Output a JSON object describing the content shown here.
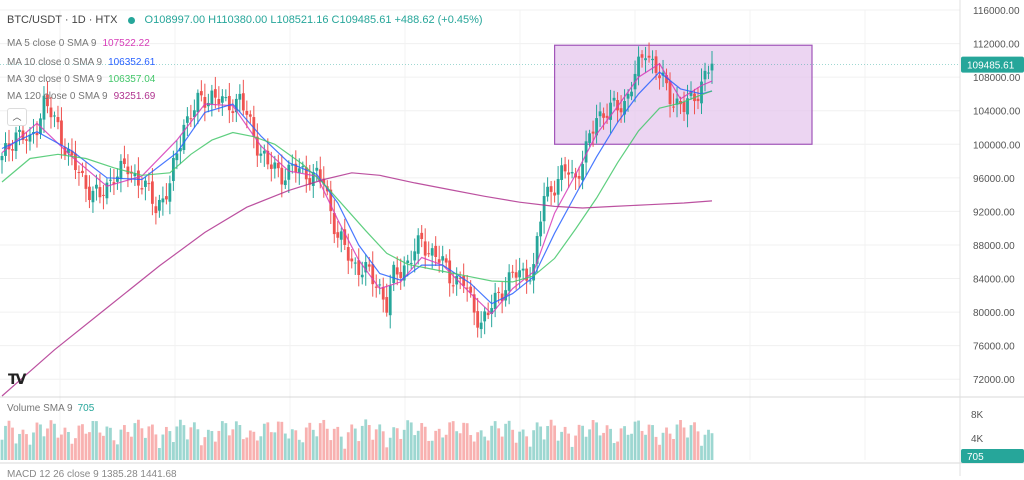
{
  "header": {
    "title": "BTC/USDT · 1D · HTX",
    "ohlc": "O108997.00 H110380.00 L108521.16 C109485.61 +488.62 (+0.45%)"
  },
  "moving_averages": [
    {
      "label": "MA 5 close 0 SMA 9",
      "value": "107522.22",
      "color": "#d63bb8"
    },
    {
      "label": "MA 10 close 0 SMA 9",
      "value": "106352.61",
      "color": "#2962ff"
    },
    {
      "label": "MA 30 close 0 SMA 9",
      "value": "106357.04",
      "color": "#43c76a"
    },
    {
      "label": "MA 120 close 0 SMA 9",
      "value": "93251.69",
      "color": "#b0338f"
    }
  ],
  "volume": {
    "label": "Volume SMA 9",
    "value": "705",
    "axis_labels": [
      "8K",
      "4K"
    ],
    "last_badge": "705"
  },
  "macd": {
    "label": "MACD 12 26 close 9",
    "values": "1385.28 1441.68"
  },
  "logo_text": "TV",
  "colors": {
    "up": "#26a69a",
    "down": "#ef5350",
    "highlight_fill": "#e6c7ee",
    "highlight_stroke": "#a155b9",
    "price_badge": "#26a69a"
  },
  "chart_data": {
    "type": "candlestick",
    "title": "BTC/USDT · 1D · HTX",
    "ylim": [
      70000,
      116000
    ],
    "y_ticks": [
      116000,
      112000,
      108000,
      104000,
      100000,
      96000,
      92000,
      88000,
      84000,
      80000,
      76000,
      72000
    ],
    "y_tick_labels": [
      "116000.00",
      "112000.00",
      "108000.00",
      "104000.00",
      "100000.00",
      "96000.00",
      "92000.00",
      "88000.00",
      "84000.00",
      "80000.00",
      "76000.00",
      "72000.00"
    ],
    "last_price": 109485.61,
    "last_price_label": "109485.61",
    "close_path": [
      [
        0,
        98000
      ],
      [
        4,
        101500
      ],
      [
        8,
        100000
      ],
      [
        12,
        105000
      ],
      [
        16,
        102000
      ],
      [
        20,
        97800
      ],
      [
        24,
        95200
      ],
      [
        28,
        93500
      ],
      [
        32,
        96500
      ],
      [
        36,
        97000
      ],
      [
        40,
        95500
      ],
      [
        44,
        92500
      ],
      [
        48,
        95000
      ],
      [
        52,
        102500
      ],
      [
        56,
        104800
      ],
      [
        60,
        106000
      ],
      [
        64,
        104500
      ],
      [
        68,
        105500
      ],
      [
        72,
        101000
      ],
      [
        76,
        97500
      ],
      [
        80,
        96500
      ],
      [
        84,
        97000
      ],
      [
        88,
        96500
      ],
      [
        92,
        95500
      ],
      [
        96,
        89000
      ],
      [
        100,
        86000
      ],
      [
        104,
        84800
      ],
      [
        108,
        83000
      ],
      [
        110,
        80800
      ],
      [
        112,
        84200
      ],
      [
        116,
        86000
      ],
      [
        120,
        88300
      ],
      [
        124,
        86800
      ],
      [
        128,
        84400
      ],
      [
        132,
        83500
      ],
      [
        134,
        81200
      ],
      [
        137,
        78800
      ],
      [
        139,
        79700
      ],
      [
        142,
        82200
      ],
      [
        146,
        84300
      ],
      [
        150,
        84800
      ],
      [
        152,
        85000
      ],
      [
        155,
        94000
      ],
      [
        158,
        95200
      ],
      [
        162,
        97000
      ],
      [
        164,
        96000
      ],
      [
        167,
        99000
      ],
      [
        170,
        103500
      ],
      [
        174,
        104000
      ],
      [
        178,
        105000
      ],
      [
        182,
        109000
      ],
      [
        184,
        111500
      ],
      [
        188,
        108000
      ],
      [
        192,
        105300
      ],
      [
        195,
        104200
      ],
      [
        199,
        106500
      ],
      [
        203,
        109485
      ]
    ],
    "series": [
      {
        "name": "MA 5",
        "color": "#d63bb8",
        "points": [
          [
            0,
            99000
          ],
          [
            10,
            102500
          ],
          [
            20,
            98500
          ],
          [
            30,
            95000
          ],
          [
            40,
            96200
          ],
          [
            50,
            100500
          ],
          [
            58,
            104800
          ],
          [
            66,
            104600
          ],
          [
            74,
            99800
          ],
          [
            82,
            96800
          ],
          [
            90,
            96200
          ],
          [
            96,
            91000
          ],
          [
            102,
            86200
          ],
          [
            108,
            82800
          ],
          [
            114,
            83600
          ],
          [
            120,
            86500
          ],
          [
            126,
            85600
          ],
          [
            134,
            82200
          ],
          [
            140,
            79800
          ],
          [
            146,
            82800
          ],
          [
            152,
            84800
          ],
          [
            158,
            91800
          ],
          [
            164,
            96400
          ],
          [
            170,
            101200
          ],
          [
            176,
            104500
          ],
          [
            182,
            108000
          ],
          [
            188,
            109600
          ],
          [
            194,
            105400
          ],
          [
            200,
            107000
          ],
          [
            203,
            107522
          ]
        ]
      },
      {
        "name": "MA 10",
        "color": "#2962ff",
        "points": [
          [
            0,
            99500
          ],
          [
            10,
            101500
          ],
          [
            20,
            99200
          ],
          [
            30,
            96000
          ],
          [
            40,
            95800
          ],
          [
            50,
            99000
          ],
          [
            58,
            103800
          ],
          [
            66,
            104800
          ],
          [
            74,
            101000
          ],
          [
            82,
            97800
          ],
          [
            90,
            96400
          ],
          [
            96,
            93000
          ],
          [
            102,
            88000
          ],
          [
            108,
            84600
          ],
          [
            114,
            83800
          ],
          [
            120,
            85600
          ],
          [
            126,
            85600
          ],
          [
            134,
            83400
          ],
          [
            140,
            81000
          ],
          [
            146,
            82200
          ],
          [
            152,
            84200
          ],
          [
            158,
            89400
          ],
          [
            164,
            94000
          ],
          [
            170,
            98500
          ],
          [
            176,
            102600
          ],
          [
            182,
            106000
          ],
          [
            188,
            108600
          ],
          [
            194,
            106600
          ],
          [
            200,
            106000
          ],
          [
            203,
            106352
          ]
        ]
      },
      {
        "name": "MA 30",
        "color": "#43c76a",
        "points": [
          [
            0,
            95500
          ],
          [
            8,
            98300
          ],
          [
            16,
            98800
          ],
          [
            24,
            98300
          ],
          [
            32,
            97200
          ],
          [
            40,
            96300
          ],
          [
            48,
            96600
          ],
          [
            54,
            98800
          ],
          [
            60,
            100500
          ],
          [
            66,
            101400
          ],
          [
            72,
            100900
          ],
          [
            78,
            100000
          ],
          [
            86,
            97600
          ],
          [
            92,
            95300
          ],
          [
            98,
            92500
          ],
          [
            104,
            89700
          ],
          [
            110,
            87000
          ],
          [
            116,
            85700
          ],
          [
            122,
            85200
          ],
          [
            128,
            84700
          ],
          [
            134,
            84200
          ],
          [
            140,
            83700
          ],
          [
            146,
            83600
          ],
          [
            152,
            84300
          ],
          [
            158,
            86400
          ],
          [
            164,
            89900
          ],
          [
            170,
            93600
          ],
          [
            176,
            97800
          ],
          [
            182,
            101600
          ],
          [
            188,
            104300
          ],
          [
            194,
            104900
          ],
          [
            200,
            105900
          ],
          [
            203,
            106357
          ]
        ]
      },
      {
        "name": "MA 120",
        "color": "#b0338f",
        "points": [
          [
            0,
            70000
          ],
          [
            15,
            75500
          ],
          [
            30,
            80500
          ],
          [
            45,
            85500
          ],
          [
            58,
            89500
          ],
          [
            70,
            92500
          ],
          [
            82,
            94500
          ],
          [
            92,
            95800
          ],
          [
            100,
            96600
          ],
          [
            108,
            96300
          ],
          [
            118,
            95400
          ],
          [
            128,
            94600
          ],
          [
            138,
            93800
          ],
          [
            148,
            93100
          ],
          [
            158,
            92600
          ],
          [
            166,
            92400
          ],
          [
            175,
            92600
          ],
          [
            185,
            92800
          ],
          [
            195,
            93000
          ],
          [
            203,
            93251
          ]
        ]
      }
    ],
    "highlight_zone": {
      "x_range": [
        158,
        203
      ],
      "y_range": [
        100000,
        111800
      ]
    },
    "volume_ylim": [
      0,
      10000
    ]
  }
}
